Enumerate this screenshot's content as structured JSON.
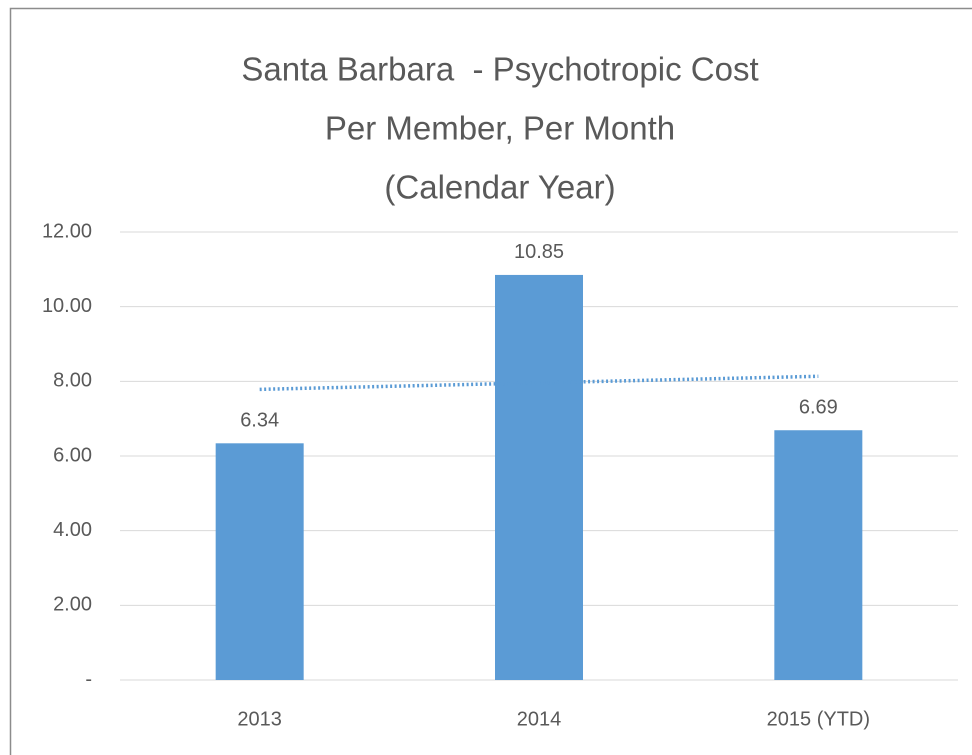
{
  "chart_data": {
    "type": "bar",
    "title": [
      "Santa Barbara  - Psychotropic Cost",
      "Per Member, Per Month",
      "(Calendar Year)"
    ],
    "categories": [
      "2013",
      "2014",
      "2015 (YTD)"
    ],
    "values": [
      6.34,
      10.85,
      6.69
    ],
    "color": "#5b9bd5",
    "trendline": "linear",
    "trendline_color": "#5b9bd5",
    "ylim": [
      0,
      12
    ],
    "yticks": [
      {
        "value": 0,
        "label": "-"
      },
      {
        "value": 2,
        "label": "2.00"
      },
      {
        "value": 4,
        "label": "4.00"
      },
      {
        "value": 6,
        "label": "6.00"
      },
      {
        "value": 8,
        "label": "8.00"
      },
      {
        "value": 10,
        "label": "10.00"
      },
      {
        "value": 12,
        "label": "12.00"
      }
    ],
    "grid": true,
    "data_labels": true
  }
}
